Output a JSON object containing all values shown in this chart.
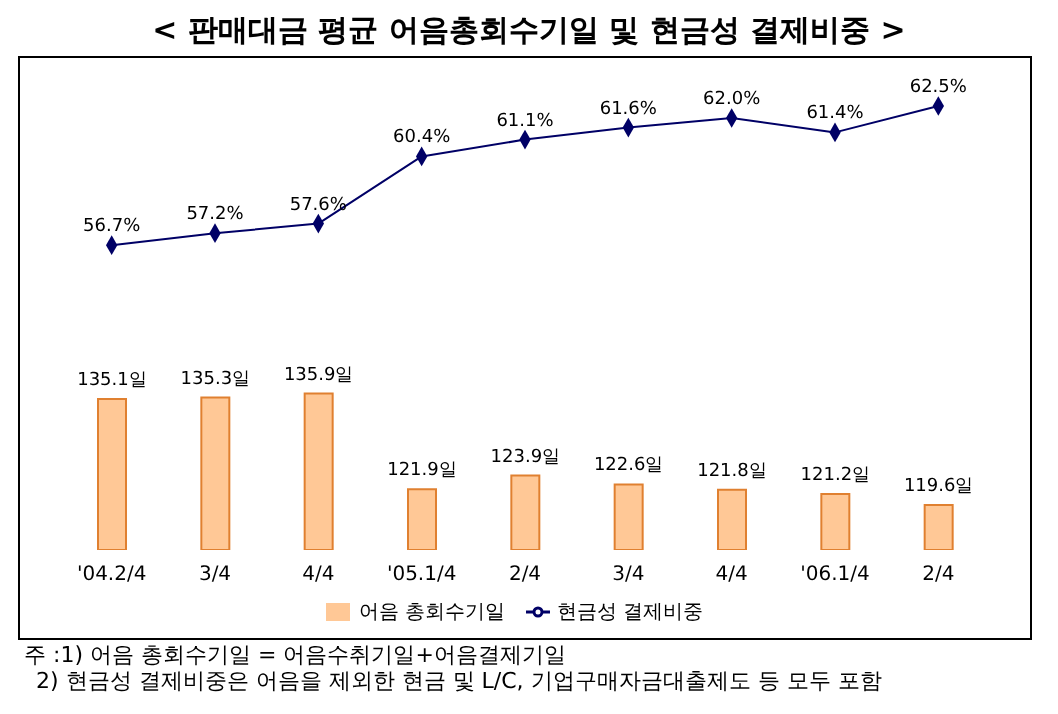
{
  "chart_data": {
    "type": "bar",
    "title": "< 판매대금 평균 어음총회수기일 및 현금성 결제비중 >",
    "categories": [
      "'04.2/4",
      "3/4",
      "4/4",
      "'05.1/4",
      "2/4",
      "3/4",
      "4/4",
      "'06.1/4",
      "2/4"
    ],
    "series": [
      {
        "name": "어음 총회수기일",
        "color": "#ffc896",
        "values": [
          135.1,
          135.3,
          135.9,
          121.9,
          123.9,
          122.6,
          121.8,
          121.2,
          119.6
        ],
        "value_labels": [
          "135.1일",
          "135.3일",
          "135.9일",
          "121.9일",
          "123.9일",
          "122.6일",
          "121.8일",
          "121.2일",
          "119.6일"
        ]
      },
      {
        "name": "현금성 결제비중",
        "type": "line",
        "axis": "y2",
        "color": "#000066",
        "values": [
          56.7,
          57.2,
          57.6,
          60.4,
          61.1,
          61.6,
          62.0,
          61.4,
          62.5
        ],
        "value_labels": [
          "56.7%",
          "57.2%",
          "57.6%",
          "60.4%",
          "61.1%",
          "61.6%",
          "62.0%",
          "61.4%",
          "62.5%"
        ]
      }
    ],
    "ylim": [
      113,
      185
    ],
    "y2lim": [
      44,
      64.5
    ],
    "grid": false,
    "legend": "bottom",
    "marker": "diamond",
    "line_style": "solid",
    "annotations": [
      "주 :1) 어음 총회수기일 = 어음수취기일+어음결제기일",
      "2) 현금성 결제비중은 어음을 제외한 현금 및 L/C, 기업구매자금대출제도 등 모두 포함"
    ]
  }
}
